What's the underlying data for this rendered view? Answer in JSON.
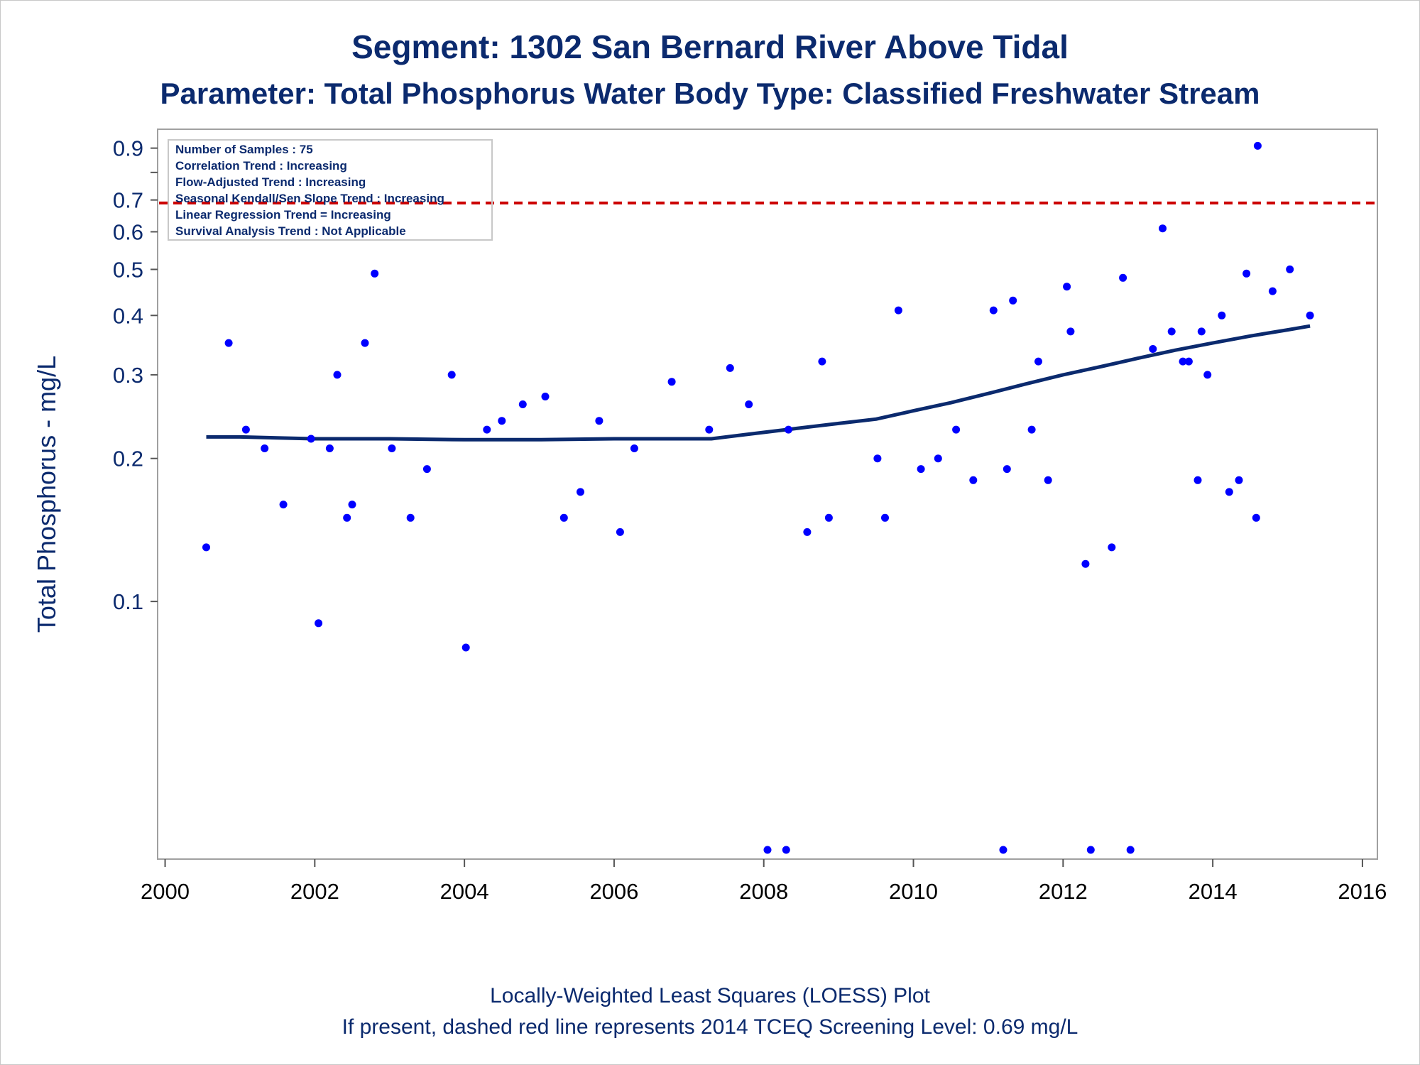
{
  "chart_data": {
    "type": "scatter",
    "title": "Segment: 1302  San Bernard River Above Tidal",
    "subtitle": "Parameter: Total Phosphorus   Water Body Type: Classified Freshwater Stream",
    "ylabel": "Total Phosphorus - mg/L",
    "xlabel": "",
    "footnotes": [
      "Locally-Weighted Least Squares (LOESS) Plot",
      "If present, dashed red line represents 2014 TCEQ Screening Level: 0.69 mg/L"
    ],
    "stats_box": [
      "Number of Samples : 75",
      "Correlation Trend : Increasing",
      "Flow-Adjusted Trend : Increasing",
      "Seasonal Kendall/Sen Slope Trend : Increasing",
      "Linear Regression Trend = Increasing",
      "Survival Analysis Trend : Not Applicable"
    ],
    "y_scale": "log",
    "xlim": [
      1999.9,
      2016.2
    ],
    "ylim": [
      0.03,
      0.94
    ],
    "x_ticks": [
      2000,
      2002,
      2004,
      2006,
      2008,
      2010,
      2012,
      2014,
      2016
    ],
    "x_tick_labels": [
      "2000",
      "2002",
      "2004",
      "2006",
      "2008",
      "2010",
      "2012",
      "2014",
      "2016"
    ],
    "y_ticks": [
      0.1,
      0.2,
      0.3,
      0.4,
      0.5,
      0.6,
      0.7,
      0.9
    ],
    "y_tick_labels": [
      "0.1",
      "0.2",
      "0.3",
      "0.4",
      "0.5",
      "0.6",
      "0.7",
      "0.9"
    ],
    "y_minor_ticks": [
      0.8
    ],
    "grid": false,
    "screening_level": {
      "value": 0.69,
      "color": "#cc0000",
      "style": "dashed"
    },
    "point_color": "#0000ff",
    "line_color": "#0b2a6e",
    "text_color": "#0b2a6e",
    "points": [
      {
        "x": 2000.55,
        "y": 0.13
      },
      {
        "x": 2000.85,
        "y": 0.35
      },
      {
        "x": 2001.08,
        "y": 0.23
      },
      {
        "x": 2001.33,
        "y": 0.21
      },
      {
        "x": 2001.58,
        "y": 0.16
      },
      {
        "x": 2001.95,
        "y": 0.22
      },
      {
        "x": 2002.05,
        "y": 0.09
      },
      {
        "x": 2002.2,
        "y": 0.21
      },
      {
        "x": 2002.3,
        "y": 0.3
      },
      {
        "x": 2002.43,
        "y": 0.15
      },
      {
        "x": 2002.5,
        "y": 0.16
      },
      {
        "x": 2002.67,
        "y": 0.35
      },
      {
        "x": 2002.8,
        "y": 0.49
      },
      {
        "x": 2003.03,
        "y": 0.21
      },
      {
        "x": 2003.28,
        "y": 0.15
      },
      {
        "x": 2003.5,
        "y": 0.19
      },
      {
        "x": 2003.83,
        "y": 0.3
      },
      {
        "x": 2004.02,
        "y": 0.08
      },
      {
        "x": 2004.3,
        "y": 0.23
      },
      {
        "x": 2004.5,
        "y": 0.24
      },
      {
        "x": 2004.78,
        "y": 0.26
      },
      {
        "x": 2005.08,
        "y": 0.27
      },
      {
        "x": 2005.33,
        "y": 0.15
      },
      {
        "x": 2005.55,
        "y": 0.17
      },
      {
        "x": 2005.8,
        "y": 0.24
      },
      {
        "x": 2006.08,
        "y": 0.14
      },
      {
        "x": 2006.27,
        "y": 0.21
      },
      {
        "x": 2006.77,
        "y": 0.29
      },
      {
        "x": 2007.27,
        "y": 0.23
      },
      {
        "x": 2007.55,
        "y": 0.31
      },
      {
        "x": 2007.8,
        "y": 0.26
      },
      {
        "x": 2008.05,
        "y": 0.03
      },
      {
        "x": 2008.3,
        "y": 0.03
      },
      {
        "x": 2008.33,
        "y": 0.23
      },
      {
        "x": 2008.58,
        "y": 0.14
      },
      {
        "x": 2008.78,
        "y": 0.32
      },
      {
        "x": 2008.87,
        "y": 0.15
      },
      {
        "x": 2009.52,
        "y": 0.2
      },
      {
        "x": 2009.62,
        "y": 0.15
      },
      {
        "x": 2009.8,
        "y": 0.41
      },
      {
        "x": 2010.1,
        "y": 0.19
      },
      {
        "x": 2010.33,
        "y": 0.2
      },
      {
        "x": 2010.57,
        "y": 0.23
      },
      {
        "x": 2010.8,
        "y": 0.18
      },
      {
        "x": 2011.07,
        "y": 0.41
      },
      {
        "x": 2011.2,
        "y": 0.03
      },
      {
        "x": 2011.25,
        "y": 0.19
      },
      {
        "x": 2011.33,
        "y": 0.43
      },
      {
        "x": 2011.58,
        "y": 0.23
      },
      {
        "x": 2011.67,
        "y": 0.32
      },
      {
        "x": 2011.8,
        "y": 0.18
      },
      {
        "x": 2012.05,
        "y": 0.46
      },
      {
        "x": 2012.1,
        "y": 0.37
      },
      {
        "x": 2012.3,
        "y": 0.12
      },
      {
        "x": 2012.37,
        "y": 0.03
      },
      {
        "x": 2012.65,
        "y": 0.13
      },
      {
        "x": 2012.8,
        "y": 0.48
      },
      {
        "x": 2012.9,
        "y": 0.03
      },
      {
        "x": 2013.2,
        "y": 0.34
      },
      {
        "x": 2013.33,
        "y": 0.61
      },
      {
        "x": 2013.45,
        "y": 0.37
      },
      {
        "x": 2013.6,
        "y": 0.32
      },
      {
        "x": 2013.68,
        "y": 0.32
      },
      {
        "x": 2013.8,
        "y": 0.18
      },
      {
        "x": 2013.85,
        "y": 0.37
      },
      {
        "x": 2013.93,
        "y": 0.3
      },
      {
        "x": 2014.12,
        "y": 0.4
      },
      {
        "x": 2014.22,
        "y": 0.17
      },
      {
        "x": 2014.35,
        "y": 0.18
      },
      {
        "x": 2014.45,
        "y": 0.49
      },
      {
        "x": 2014.58,
        "y": 0.15
      },
      {
        "x": 2014.6,
        "y": 0.91
      },
      {
        "x": 2014.8,
        "y": 0.45
      },
      {
        "x": 2015.03,
        "y": 0.5
      },
      {
        "x": 2015.3,
        "y": 0.4
      }
    ],
    "loess": {
      "name": "LOESS",
      "x": [
        2000.55,
        2001.0,
        2001.5,
        2002.0,
        2003.0,
        2004.0,
        2005.0,
        2006.0,
        2007.0,
        2007.3,
        2007.8,
        2008.5,
        2009.0,
        2009.5,
        2010.0,
        2010.5,
        2011.0,
        2011.5,
        2012.0,
        2012.5,
        2013.0,
        2013.5,
        2014.0,
        2014.5,
        2015.0,
        2015.3
      ],
      "y": [
        0.222,
        0.222,
        0.221,
        0.22,
        0.22,
        0.219,
        0.219,
        0.22,
        0.22,
        0.22,
        0.225,
        0.232,
        0.237,
        0.242,
        0.252,
        0.262,
        0.274,
        0.287,
        0.3,
        0.312,
        0.325,
        0.338,
        0.35,
        0.362,
        0.373,
        0.38
      ]
    }
  }
}
